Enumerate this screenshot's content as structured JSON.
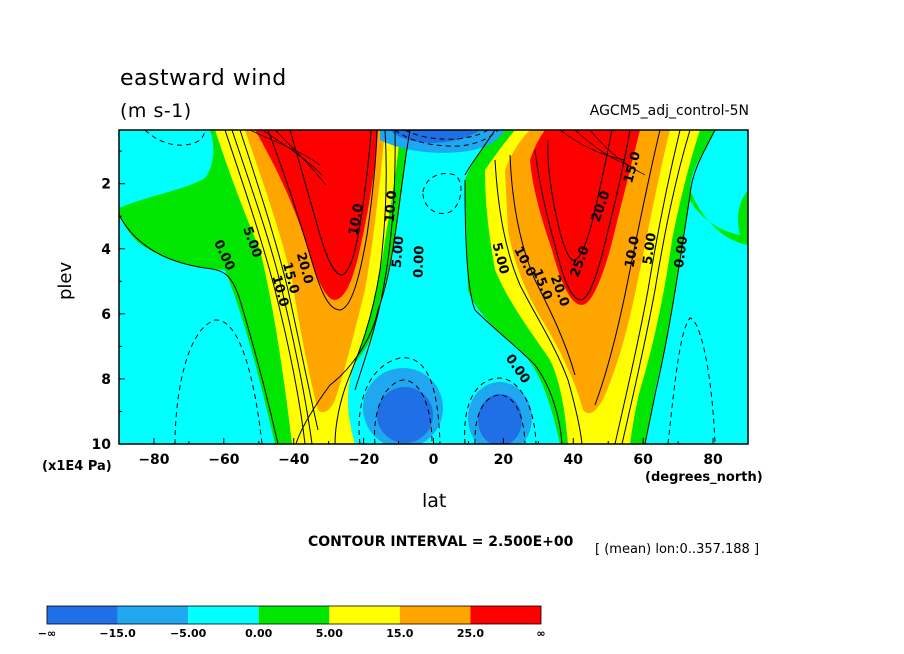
{
  "chart_data": {
    "type": "heatmap",
    "title": "eastward wind",
    "units": "(m s-1)",
    "dataset": "AGCM5_adj_control-5N",
    "xlabel": "lat",
    "x_units": "(degrees_north)",
    "ylabel": "plev",
    "y_units": "(x1E4 Pa)",
    "xlim": [
      -90,
      90
    ],
    "ylim": [
      10,
      0
    ],
    "y_inverted": true,
    "x_ticks": [
      -80,
      -60,
      -40,
      -20,
      0,
      20,
      40,
      60,
      80
    ],
    "x_tick_labels": [
      "−80",
      "−60",
      "−40",
      "−20",
      "0",
      "20",
      "40",
      "60",
      "80"
    ],
    "y_ticks": [
      2,
      4,
      6,
      8,
      10
    ],
    "y_tick_labels": [
      "2",
      "4",
      "6",
      "8",
      "10"
    ],
    "contour_interval_text": "CONTOUR INTERVAL = 2.500E+00",
    "mean_text": "[ (mean) lon:0..357.188 ]",
    "colorbar": {
      "colors": [
        "#1f6fe6",
        "#1fa8f0",
        "#00ffff",
        "#00e600",
        "#ffff00",
        "#ffa500",
        "#ff0000"
      ],
      "labels": [
        "−∞",
        "−15.0",
        "−5.00",
        "0.00",
        "5.00",
        "15.0",
        "25.0",
        "∞"
      ]
    },
    "contour_labels": [
      {
        "text": "0.00",
        "lat": -60,
        "p": 4.2,
        "angle": 65
      },
      {
        "text": "5.00",
        "lat": -52,
        "p": 3.8,
        "angle": 70
      },
      {
        "text": "10.0",
        "lat": -44,
        "p": 5.3,
        "angle": 75
      },
      {
        "text": "15.0",
        "lat": -41,
        "p": 4.9,
        "angle": 75
      },
      {
        "text": "20.0",
        "lat": -37,
        "p": 4.6,
        "angle": 75
      },
      {
        "text": "10.0",
        "lat": -22,
        "p": 3.1,
        "angle": -80
      },
      {
        "text": "10.0",
        "lat": -12,
        "p": 2.7,
        "angle": -85
      },
      {
        "text": "5.00",
        "lat": -10,
        "p": 4.1,
        "angle": -85
      },
      {
        "text": "0.00",
        "lat": -4,
        "p": 4.4,
        "angle": -88
      },
      {
        "text": "5.00",
        "lat": 19,
        "p": 4.3,
        "angle": 75
      },
      {
        "text": "10.0",
        "lat": 26,
        "p": 4.4,
        "angle": 62
      },
      {
        "text": "15.0",
        "lat": 31,
        "p": 5.1,
        "angle": 68
      },
      {
        "text": "20.0",
        "lat": 36,
        "p": 5.3,
        "angle": 70
      },
      {
        "text": "25.0",
        "lat": 42,
        "p": 4.4,
        "angle": -70
      },
      {
        "text": "20.0",
        "lat": 48,
        "p": 2.7,
        "angle": -70
      },
      {
        "text": "15.0",
        "lat": 57,
        "p": 1.5,
        "angle": -75
      },
      {
        "text": "10.0",
        "lat": 57,
        "p": 4.1,
        "angle": -80
      },
      {
        "text": "5.00",
        "lat": 62,
        "p": 4.0,
        "angle": -82
      },
      {
        "text": "0.00",
        "lat": 71,
        "p": 4.1,
        "angle": -82
      },
      {
        "text": "0.00",
        "lat": 24,
        "p": 7.7,
        "angle": 55
      }
    ]
  }
}
